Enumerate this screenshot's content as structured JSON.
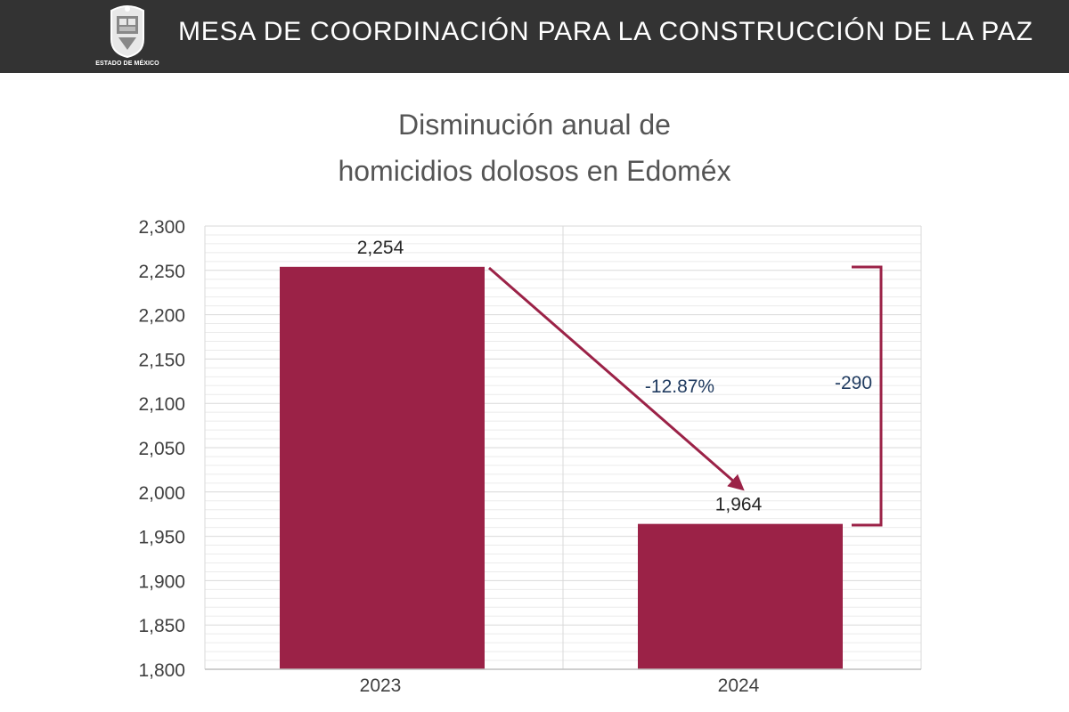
{
  "header": {
    "title": "MESA DE COORDINACIÓN PARA LA CONSTRUCCIÓN DE LA PAZ",
    "logo_caption": "ESTADO DE MÉXICO"
  },
  "colors": {
    "header_bg": "#333333",
    "bar": "#9b2247",
    "text": "#404040",
    "annotation": "#1f3a5f",
    "grid": "#d9d9d9"
  },
  "chart_data": {
    "type": "bar",
    "title_lines": [
      "Disminución anual de",
      "homicidios dolosos en Edoméx"
    ],
    "categories": [
      "2023",
      "2024"
    ],
    "values": [
      2254,
      1964
    ],
    "data_labels": [
      "2,254",
      "1,964"
    ],
    "ylim": [
      1800,
      2300
    ],
    "ytick_values": [
      1800,
      1850,
      1900,
      1950,
      2000,
      2050,
      2100,
      2150,
      2200,
      2250,
      2300
    ],
    "ytick_labels": [
      "1,800",
      "1,850",
      "1,900",
      "1,950",
      "2,000",
      "2,050",
      "2,100",
      "2,150",
      "2,200",
      "2,250",
      "2,300"
    ],
    "minor_gridline_step": 10,
    "grid": true,
    "xlabel": "",
    "ylabel": "",
    "annotations": {
      "percent_change": "-12.87%",
      "absolute_change": "-290"
    }
  }
}
